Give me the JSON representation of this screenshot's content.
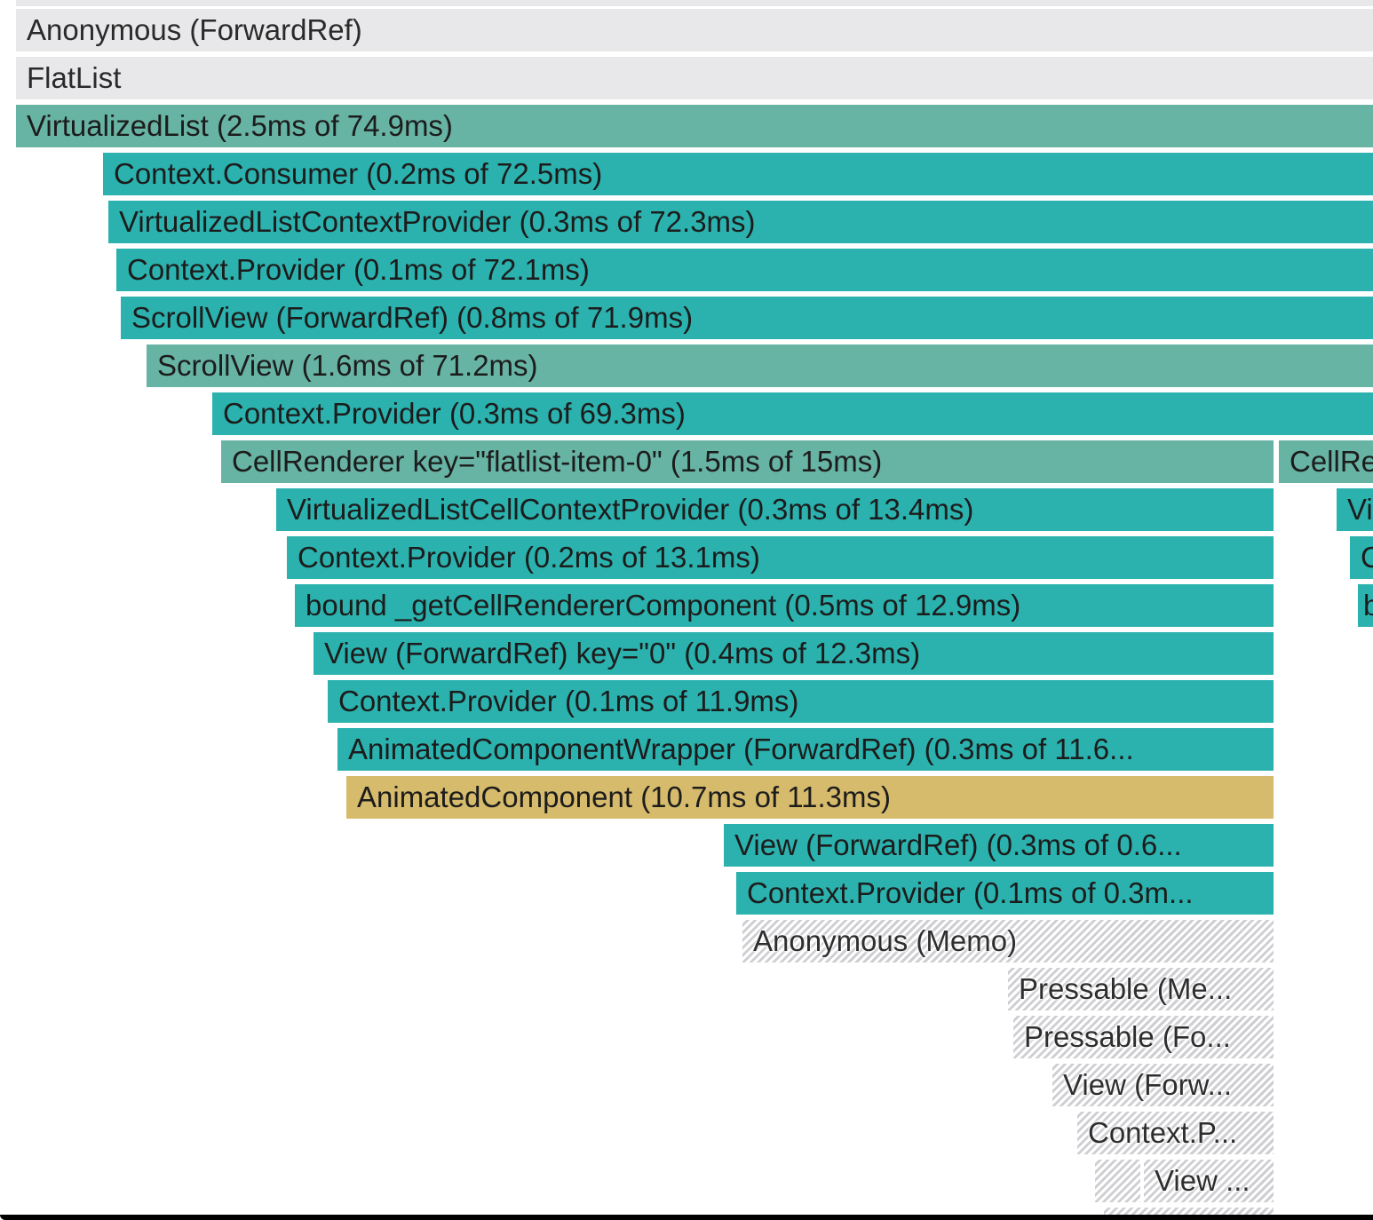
{
  "flamegraph": {
    "rows": [
      {
        "label": "Anonymous (ForwardRef)",
        "color": "gray"
      },
      {
        "label": "FlatList",
        "color": "gray"
      },
      {
        "label": "VirtualizedList (2.5ms of 74.9ms)",
        "color": "sage"
      },
      {
        "label": "Context.Consumer (0.2ms of 72.5ms)",
        "color": "teal"
      },
      {
        "label": "VirtualizedListContextProvider (0.3ms of 72.3ms)",
        "color": "teal"
      },
      {
        "label": "Context.Provider (0.1ms of 72.1ms)",
        "color": "teal"
      },
      {
        "label": "ScrollView (ForwardRef) (0.8ms of 71.9ms)",
        "color": "teal"
      },
      {
        "label": "ScrollView (1.6ms of 71.2ms)",
        "color": "sage"
      },
      {
        "label": "Context.Provider (0.3ms of 69.3ms)",
        "color": "teal"
      },
      {
        "label": "CellRenderer key=\"flatlist-item-0\" (1.5ms of 15ms)",
        "color": "sage"
      },
      {
        "label": "CellRe",
        "color": "sage"
      },
      {
        "label": "VirtualizedListCellContextProvider (0.3ms of 13.4ms)",
        "color": "teal"
      },
      {
        "label": "Vi",
        "color": "teal"
      },
      {
        "label": "Context.Provider (0.2ms of 13.1ms)",
        "color": "teal"
      },
      {
        "label": "C",
        "color": "teal"
      },
      {
        "label": "bound _getCellRendererComponent (0.5ms of 12.9ms)",
        "color": "teal"
      },
      {
        "label": "b",
        "color": "teal"
      },
      {
        "label": "View (ForwardRef) key=\"0\" (0.4ms of 12.3ms)",
        "color": "teal"
      },
      {
        "label": "Context.Provider (0.1ms of 11.9ms)",
        "color": "teal"
      },
      {
        "label": "AnimatedComponentWrapper (ForwardRef) (0.3ms of 11.6...",
        "color": "teal"
      },
      {
        "label": "AnimatedComponent (10.7ms of 11.3ms)",
        "color": "gold"
      },
      {
        "label": "View (ForwardRef) (0.3ms of 0.6...",
        "color": "teal"
      },
      {
        "label": "Context.Provider (0.1ms of 0.3m...",
        "color": "teal"
      },
      {
        "label": "Anonymous (Memo)",
        "color": "hatch"
      },
      {
        "label": "Pressable (Me...",
        "color": "hatch"
      },
      {
        "label": "Pressable (Fo...",
        "color": "hatch"
      },
      {
        "label": "View (Forw...",
        "color": "hatch"
      },
      {
        "label": "Context.P...",
        "color": "hatch"
      },
      {
        "label": "View ...",
        "color": "hatch"
      }
    ]
  }
}
